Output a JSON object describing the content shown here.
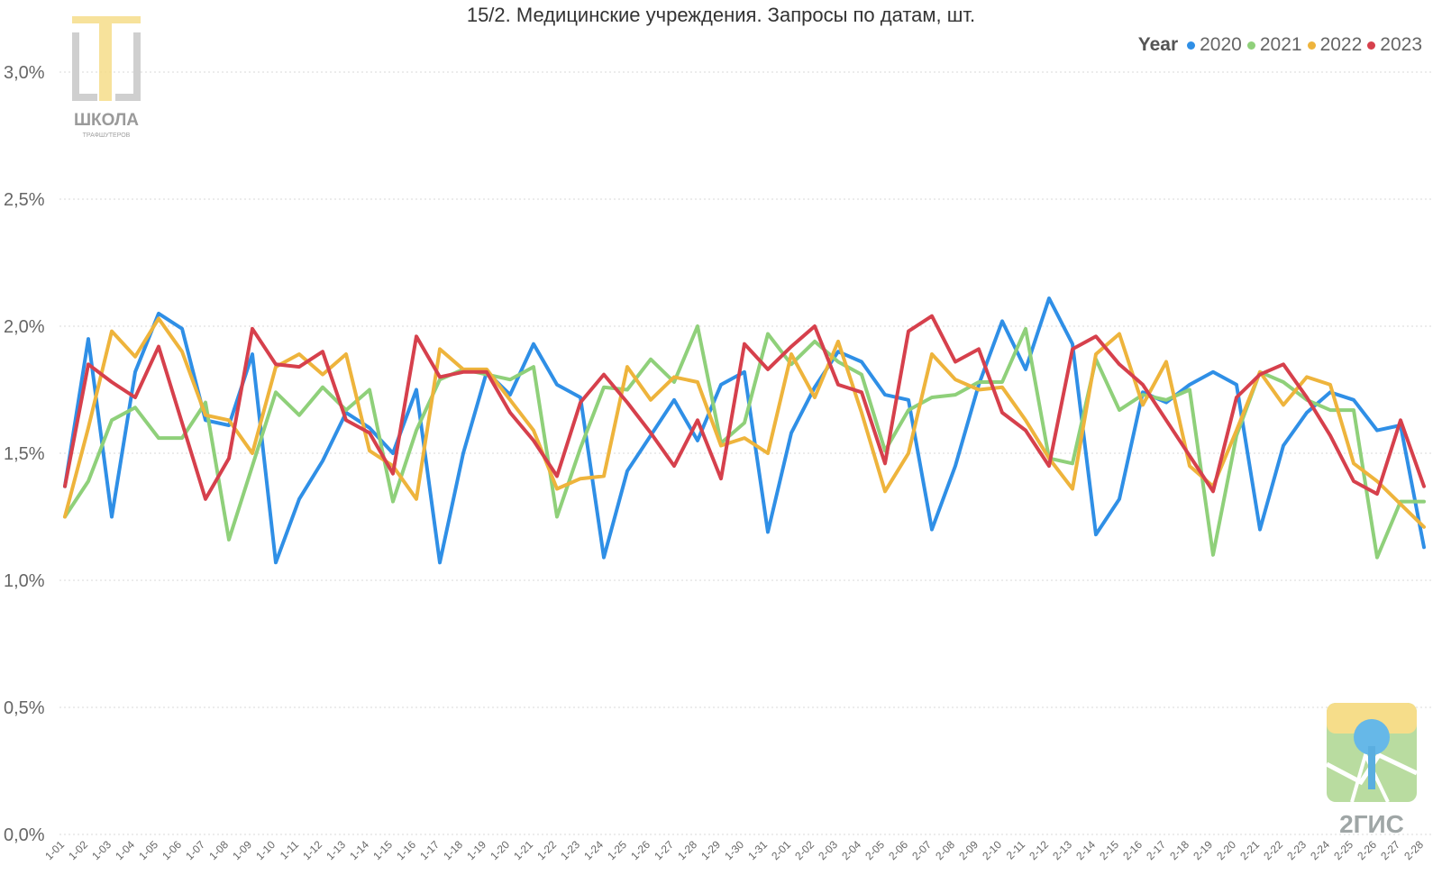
{
  "title": "15/2. Медицинские учреждения. Запросы по датам, шт.",
  "legend": {
    "title": "Year",
    "items": [
      {
        "label": "2020",
        "color": "#2f8fe6"
      },
      {
        "label": "2021",
        "color": "#8fd07a"
      },
      {
        "label": "2022",
        "color": "#eeb43c"
      },
      {
        "label": "2023",
        "color": "#d6404c"
      }
    ]
  },
  "logos": {
    "school_text": "ШКОЛА",
    "school_subtext": "ТРАФШУТЕРОВ",
    "gis_text": "2ГИС"
  },
  "chart_data": {
    "type": "line",
    "title": "15/2. Медицинские учреждения. Запросы по датам, шт.",
    "xlabel": "",
    "ylabel": "",
    "ylim": [
      0,
      3
    ],
    "yticks": [
      "0,0%",
      "0,5%",
      "1,0%",
      "1,5%",
      "2,0%",
      "2,5%",
      "3,0%"
    ],
    "ytick_values": [
      0,
      0.5,
      1.0,
      1.5,
      2.0,
      2.5,
      3.0
    ],
    "grid": true,
    "legend_position": "top-right",
    "x": [
      "1-01",
      "1-02",
      "1-03",
      "1-04",
      "1-05",
      "1-06",
      "1-07",
      "1-08",
      "1-09",
      "1-10",
      "1-11",
      "1-12",
      "1-13",
      "1-14",
      "1-15",
      "1-16",
      "1-17",
      "1-18",
      "1-19",
      "1-20",
      "1-21",
      "1-22",
      "1-23",
      "1-24",
      "1-25",
      "1-26",
      "1-27",
      "1-28",
      "1-29",
      "1-30",
      "1-31",
      "2-01",
      "2-02",
      "2-03",
      "2-04",
      "2-05",
      "2-06",
      "2-07",
      "2-08",
      "2-09",
      "2-10",
      "2-11",
      "2-12",
      "2-13",
      "2-14",
      "2-15",
      "2-16",
      "2-17",
      "2-18",
      "2-19",
      "2-20",
      "2-21",
      "2-22",
      "2-23",
      "2-24",
      "2-25",
      "2-26",
      "2-27",
      "2-28"
    ],
    "series": [
      {
        "name": "2020",
        "color": "#2f8fe6",
        "values": [
          1.37,
          1.95,
          1.25,
          1.82,
          2.05,
          1.99,
          1.63,
          1.61,
          1.89,
          1.07,
          1.32,
          1.47,
          1.66,
          1.6,
          1.5,
          1.75,
          1.07,
          1.5,
          1.82,
          1.73,
          1.93,
          1.77,
          1.72,
          1.09,
          1.43,
          1.57,
          1.71,
          1.55,
          1.77,
          1.82,
          1.19,
          1.58,
          1.76,
          1.9,
          1.86,
          1.73,
          1.71,
          1.2,
          1.45,
          1.77,
          2.02,
          1.83,
          2.11,
          1.93,
          1.18,
          1.32,
          1.74,
          1.7,
          1.77,
          1.82,
          1.77,
          1.2,
          1.53,
          1.66,
          1.74,
          1.71,
          1.59,
          1.61,
          1.13
        ]
      },
      {
        "name": "2021",
        "color": "#8fd07a",
        "values": [
          1.25,
          1.39,
          1.63,
          1.68,
          1.56,
          1.56,
          1.7,
          1.16,
          1.45,
          1.74,
          1.65,
          1.76,
          1.67,
          1.75,
          1.31,
          1.59,
          1.79,
          1.83,
          1.81,
          1.79,
          1.84,
          1.25,
          1.52,
          1.76,
          1.75,
          1.87,
          1.78,
          2.0,
          1.54,
          1.62,
          1.97,
          1.85,
          1.94,
          1.86,
          1.81,
          1.51,
          1.67,
          1.72,
          1.73,
          1.78,
          1.78,
          1.99,
          1.48,
          1.46,
          1.87,
          1.67,
          1.73,
          1.71,
          1.75,
          1.1,
          1.57,
          1.82,
          1.78,
          1.71,
          1.67,
          1.67,
          1.09,
          1.31,
          1.31
        ]
      },
      {
        "name": "2022",
        "color": "#eeb43c",
        "values": [
          1.25,
          1.6,
          1.98,
          1.88,
          2.03,
          1.9,
          1.65,
          1.63,
          1.5,
          1.84,
          1.89,
          1.81,
          1.89,
          1.51,
          1.45,
          1.32,
          1.91,
          1.83,
          1.83,
          1.71,
          1.59,
          1.36,
          1.4,
          1.41,
          1.84,
          1.71,
          1.8,
          1.78,
          1.53,
          1.56,
          1.5,
          1.89,
          1.72,
          1.94,
          1.66,
          1.35,
          1.5,
          1.89,
          1.79,
          1.75,
          1.76,
          1.63,
          1.48,
          1.36,
          1.89,
          1.97,
          1.69,
          1.86,
          1.45,
          1.37,
          1.59,
          1.82,
          1.69,
          1.8,
          1.77,
          1.46,
          1.39,
          1.3,
          1.21
        ]
      },
      {
        "name": "2023",
        "color": "#d6404c",
        "values": [
          1.37,
          1.85,
          1.78,
          1.72,
          1.92,
          1.62,
          1.32,
          1.48,
          1.99,
          1.85,
          1.84,
          1.9,
          1.63,
          1.58,
          1.42,
          1.96,
          1.8,
          1.82,
          1.82,
          1.66,
          1.55,
          1.41,
          1.7,
          1.81,
          1.7,
          1.58,
          1.45,
          1.63,
          1.4,
          1.93,
          1.83,
          1.92,
          2.0,
          1.77,
          1.74,
          1.46,
          1.98,
          2.04,
          1.86,
          1.91,
          1.66,
          1.59,
          1.45,
          1.91,
          1.96,
          1.85,
          1.77,
          1.63,
          1.49,
          1.35,
          1.72,
          1.81,
          1.85,
          1.72,
          1.57,
          1.39,
          1.34,
          1.63,
          1.37
        ]
      }
    ]
  }
}
